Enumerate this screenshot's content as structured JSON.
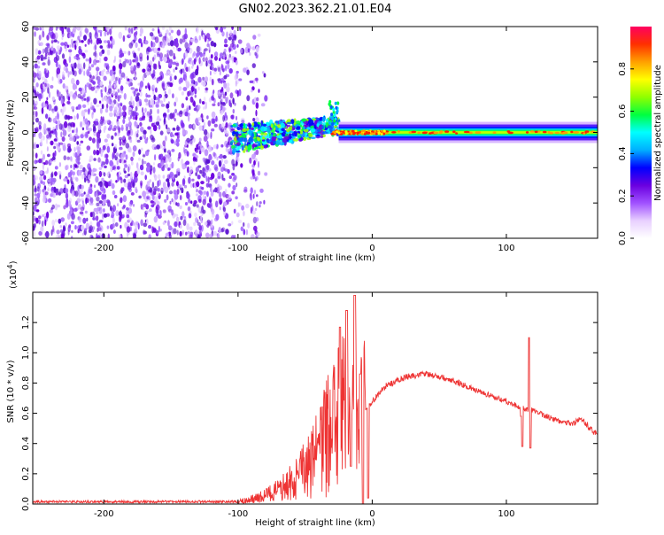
{
  "title": "GN02.2023.362.21.01.E04",
  "chart_data": [
    {
      "type": "heatmap",
      "xlabel": "Height of straight line (km)",
      "ylabel": "Frequency (Hz)",
      "xlim": [
        -253,
        168
      ],
      "ylim": [
        -60,
        60
      ],
      "xticks": [
        -200,
        -100,
        0,
        100
      ],
      "yticks": [
        -60,
        -40,
        -20,
        0,
        20,
        40,
        60
      ],
      "colorbar": {
        "label": "Normalized spectral amplitude",
        "range": [
          0.0,
          1.0
        ],
        "ticks": [
          "0.0",
          "0.2",
          "0.4",
          "0.6",
          "0.8"
        ],
        "colors": [
          "#ffffff",
          "#e8d0ff",
          "#a050ff",
          "#6a00e0",
          "#0000ff",
          "#00b0ff",
          "#00ffff",
          "#00ff40",
          "#90ff00",
          "#ffff00",
          "#ffa000",
          "#ff3000",
          "#ff0060"
        ]
      },
      "noise_region_x": [
        -253,
        -78
      ],
      "signal_region_x": [
        -105,
        -25
      ],
      "band_region_x": [
        -25,
        168
      ],
      "band_center_freq": 0
    },
    {
      "type": "line",
      "xlabel": "Height of straight line (km)",
      "ylabel": "SNR (10 * v/v)",
      "y_exponent": "(x10",
      "y_exponent_power": "4",
      "y_exponent_close": ")",
      "xlim": [
        -253,
        168
      ],
      "ylim": [
        0,
        1.4
      ],
      "xticks": [
        -200,
        -100,
        0,
        100
      ],
      "yticks": [
        "0.0",
        "0.2",
        "0.4",
        "0.6",
        "0.8",
        "1.0",
        "1.2"
      ],
      "series_color": "#ee3333",
      "envelope": [
        [
          -253,
          0.015
        ],
        [
          -100,
          0.015
        ],
        [
          -85,
          0.04
        ],
        [
          -70,
          0.09
        ],
        [
          -55,
          0.17
        ],
        [
          -45,
          0.28
        ],
        [
          -35,
          0.42
        ],
        [
          -25,
          0.58
        ],
        [
          -15,
          0.62
        ],
        [
          -10,
          0.6
        ],
        [
          -5,
          0.62
        ],
        [
          0,
          0.68
        ],
        [
          10,
          0.78
        ],
        [
          25,
          0.84
        ],
        [
          40,
          0.86
        ],
        [
          60,
          0.82
        ],
        [
          80,
          0.74
        ],
        [
          100,
          0.68
        ],
        [
          110,
          0.64
        ],
        [
          120,
          0.62
        ],
        [
          135,
          0.56
        ],
        [
          150,
          0.53
        ],
        [
          155,
          0.57
        ],
        [
          168,
          0.45
        ]
      ],
      "peaks": [
        [
          -24,
          1.17
        ],
        [
          -19,
          1.28
        ],
        [
          -13,
          1.38
        ],
        [
          -9,
          0.86
        ],
        [
          111,
          0.58
        ],
        [
          117,
          1.1
        ]
      ],
      "dips": [
        [
          -16,
          0.25
        ],
        [
          -7,
          0.0
        ],
        [
          -3,
          0.04
        ],
        [
          112,
          0.38
        ],
        [
          118,
          0.37
        ]
      ]
    }
  ]
}
